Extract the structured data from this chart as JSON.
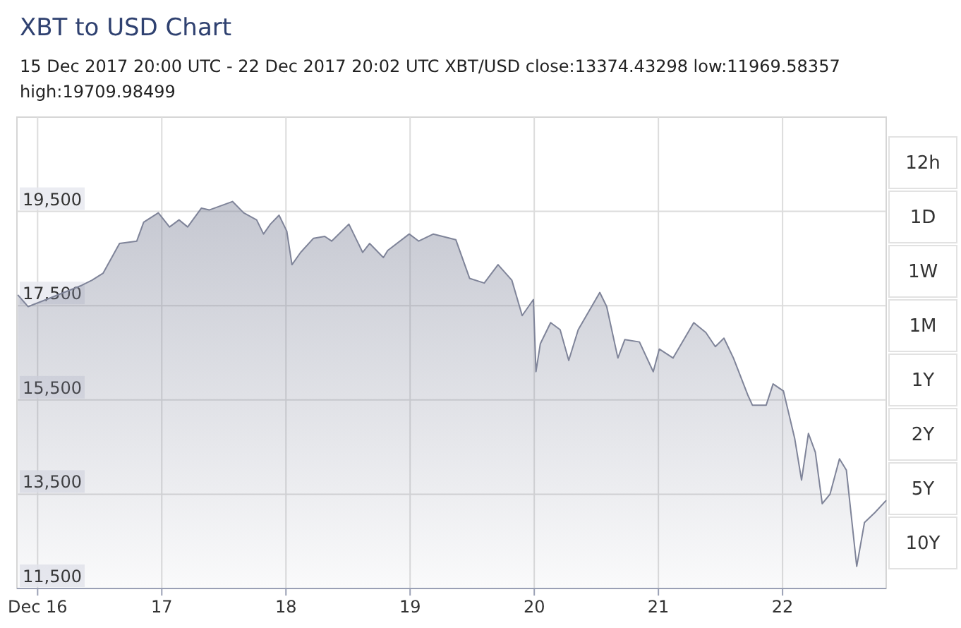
{
  "chart_data": {
    "type": "area",
    "title": "XBT to USD Chart",
    "subtitle": "15 Dec 2017 20:00 UTC - 22 Dec 2017 20:02 UTC   XBT/USD close:13374.43298 low:11969.58357 high:19709.98499",
    "x": [
      "2017-12-15T20:10",
      "2017-12-15T22:10",
      "2017-12-16T01:40",
      "2017-12-16T08:30",
      "2017-12-16T10:30",
      "2017-12-16T12:40",
      "2017-12-16T15:50",
      "2017-12-16T19:10",
      "2017-12-16T20:30",
      "2017-12-16T23:20",
      "2017-12-17T01:30",
      "2017-12-17T03:20",
      "2017-12-17T05:00",
      "2017-12-17T07:40",
      "2017-12-17T09:10",
      "2017-12-17T13:40",
      "2017-12-17T15:50",
      "2017-12-17T18:20",
      "2017-12-17T19:40",
      "2017-12-17T21:00",
      "2017-12-17T22:40",
      "2017-12-18T00:10",
      "2017-12-18T01:10",
      "2017-12-18T02:50",
      "2017-12-18T05:20",
      "2017-12-18T07:30",
      "2017-12-18T08:50",
      "2017-12-18T12:10",
      "2017-12-18T14:50",
      "2017-12-18T16:10",
      "2017-12-18T18:50",
      "2017-12-18T19:40",
      "2017-12-18T23:50",
      "2017-12-19T01:40",
      "2017-12-19T04:30",
      "2017-12-19T08:50",
      "2017-12-19T11:30",
      "2017-12-19T14:20",
      "2017-12-19T17:00",
      "2017-12-19T19:40",
      "2017-12-19T21:40",
      "2017-12-19T23:50",
      "2017-12-20T00:20",
      "2017-12-20T01:10",
      "2017-12-20T03:10",
      "2017-12-20T05:00",
      "2017-12-20T06:40",
      "2017-12-20T08:30",
      "2017-12-20T12:40",
      "2017-12-20T14:00",
      "2017-12-20T16:10",
      "2017-12-20T17:30",
      "2017-12-20T20:20",
      "2017-12-20T23:00",
      "2017-12-21T00:10",
      "2017-12-21T02:50",
      "2017-12-21T06:50",
      "2017-12-21T09:10",
      "2017-12-21T11:00",
      "2017-12-21T12:40",
      "2017-12-21T14:30",
      "2017-12-21T17:20",
      "2017-12-21T18:10",
      "2017-12-21T20:50",
      "2017-12-21T22:10",
      "2017-12-22T00:10",
      "2017-12-22T02:20",
      "2017-12-22T03:40",
      "2017-12-22T05:00",
      "2017-12-22T06:20",
      "2017-12-22T07:40",
      "2017-12-22T09:10",
      "2017-12-22T11:00",
      "2017-12-22T12:20",
      "2017-12-22T14:20",
      "2017-12-22T15:50",
      "2017-12-22T17:50",
      "2017-12-22T20:02"
    ],
    "series": [
      {
        "color": "#7f8499",
        "values": [
          17730,
          17480,
          17630,
          17930,
          18040,
          18190,
          18820,
          18870,
          19270,
          19470,
          19170,
          19320,
          19170,
          19570,
          19530,
          19710,
          19470,
          19320,
          19020,
          19230,
          19420,
          19080,
          18370,
          18630,
          18930,
          18970,
          18870,
          19230,
          18630,
          18820,
          18520,
          18670,
          19020,
          18870,
          19020,
          18900,
          18080,
          17980,
          18370,
          18040,
          17290,
          17630,
          16100,
          16690,
          17140,
          16990,
          16340,
          16990,
          17780,
          17480,
          16390,
          16780,
          16730,
          16100,
          16580,
          16390,
          17140,
          16930,
          16630,
          16810,
          16390,
          15590,
          15390,
          15390,
          15840,
          15690,
          14690,
          13800,
          14790,
          14390,
          13300,
          13500,
          14250,
          14010,
          11970,
          12900,
          13110,
          13370
        ]
      }
    ],
    "xlim": [
      "2017-12-15T20:00",
      "2017-12-22T20:02"
    ],
    "xticks": [
      {
        "value": "2017-12-16",
        "label": "Dec 16"
      },
      {
        "value": "2017-12-17",
        "label": "17"
      },
      {
        "value": "2017-12-18",
        "label": "18"
      },
      {
        "value": "2017-12-19",
        "label": "19"
      },
      {
        "value": "2017-12-20",
        "label": "20"
      },
      {
        "value": "2017-12-21",
        "label": "21"
      },
      {
        "value": "2017-12-22",
        "label": "22"
      }
    ],
    "ylim": [
      11500,
      21500
    ],
    "yticks": [
      {
        "value": 11500,
        "label": "11,500"
      },
      {
        "value": 13500,
        "label": "13,500"
      },
      {
        "value": 15500,
        "label": "15,500"
      },
      {
        "value": 17500,
        "label": "17,500"
      },
      {
        "value": 19500,
        "label": "19,500"
      }
    ],
    "grid": true,
    "annotations": [
      "12h",
      "1D",
      "1W",
      "1M",
      "1Y",
      "2Y",
      "5Y",
      "10Y"
    ]
  }
}
